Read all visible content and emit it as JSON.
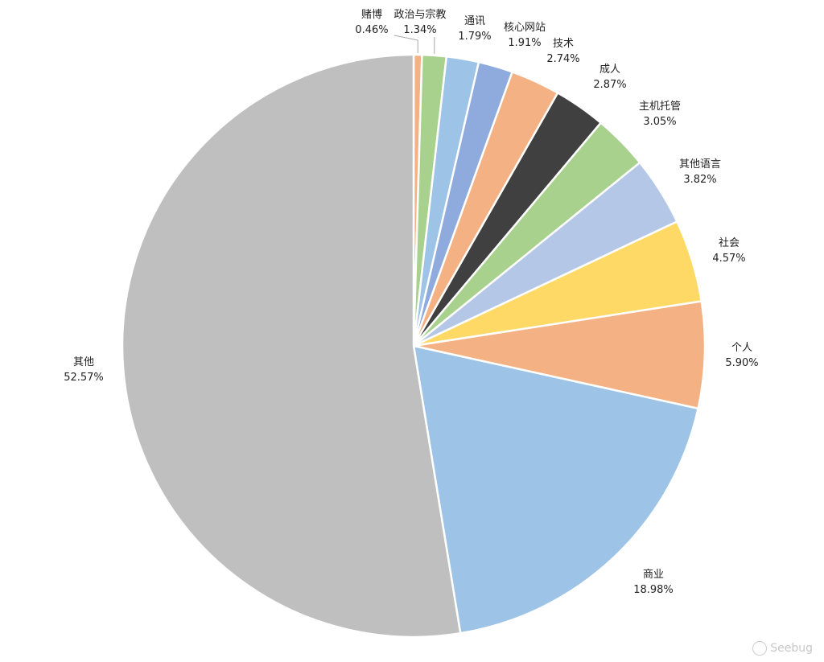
{
  "chart_data": {
    "type": "pie",
    "title": "",
    "slices": [
      {
        "label": "赌博",
        "value": 0.46,
        "value_label": "0.46%",
        "color": "#F4B183"
      },
      {
        "label": "政治与宗教",
        "value": 1.34,
        "value_label": "1.34%",
        "color": "#A9D18E"
      },
      {
        "label": "通讯",
        "value": 1.79,
        "value_label": "1.79%",
        "color": "#9DC3E6"
      },
      {
        "label": "核心网站",
        "value": 1.91,
        "value_label": "1.91%",
        "color": "#8FAADC"
      },
      {
        "label": "技术",
        "value": 2.74,
        "value_label": "2.74%",
        "color": "#F4B183"
      },
      {
        "label": "成人",
        "value": 2.87,
        "value_label": "2.87%",
        "color": "#404040"
      },
      {
        "label": "主机托管",
        "value": 3.05,
        "value_label": "3.05%",
        "color": "#A9D18E"
      },
      {
        "label": "其他语言",
        "value": 3.82,
        "value_label": "3.82%",
        "color": "#B4C7E7"
      },
      {
        "label": "社会",
        "value": 4.57,
        "value_label": "4.57%",
        "color": "#FFD966"
      },
      {
        "label": "个人",
        "value": 5.9,
        "value_label": "5.90%",
        "color": "#F4B183"
      },
      {
        "label": "商业",
        "value": 18.98,
        "value_label": "18.98%",
        "color": "#9DC3E6"
      },
      {
        "label": "其他",
        "value": 52.57,
        "value_label": "52.57%",
        "color": "#BFBFBF"
      }
    ],
    "start": "top",
    "direction": "clockwise"
  },
  "watermark": {
    "text": "Seebug",
    "icon": "seebug-logo-icon"
  }
}
